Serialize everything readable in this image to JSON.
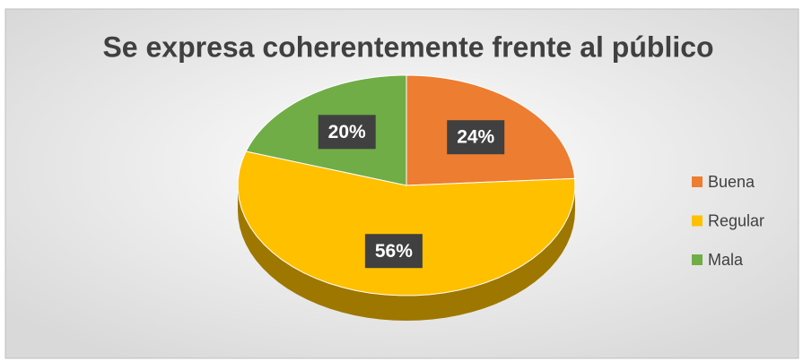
{
  "chart_data": {
    "type": "pie",
    "title": "Se expresa coherentemente frente al público",
    "categories": [
      "Buena",
      "Regular",
      "Mala"
    ],
    "values": [
      24,
      56,
      20
    ],
    "value_labels": [
      "24%",
      "56%",
      "20%"
    ],
    "colors": [
      "#ED7D31",
      "#FFC000",
      "#70AD47"
    ],
    "legend": "right"
  }
}
